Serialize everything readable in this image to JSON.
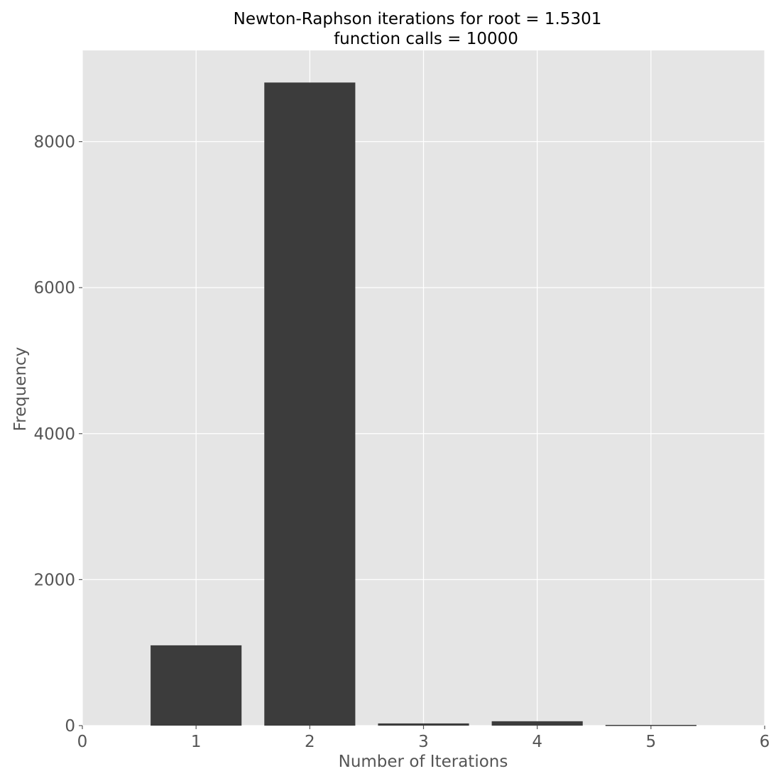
{
  "chart_data": {
    "type": "bar",
    "title_lines": [
      "Newton-Raphson iterations for root = 1.5301",
      "function calls = 10000"
    ],
    "xlabel": "Number of Iterations",
    "ylabel": "Frequency",
    "x": [
      1,
      2,
      3,
      4,
      5
    ],
    "values": [
      1100,
      8810,
      30,
      60,
      10
    ],
    "bar_width": 0.8,
    "xlim": [
      0,
      6
    ],
    "ylim": [
      0,
      9250
    ],
    "xticks": [
      0,
      1,
      2,
      3,
      4,
      5,
      6
    ],
    "yticks": [
      0,
      2000,
      4000,
      6000,
      8000
    ],
    "grid": true,
    "colors": {
      "bar": "#3c3c3c",
      "plot_background": "#e5e5e5",
      "grid": "#ffffff",
      "tick": "#555555"
    }
  }
}
